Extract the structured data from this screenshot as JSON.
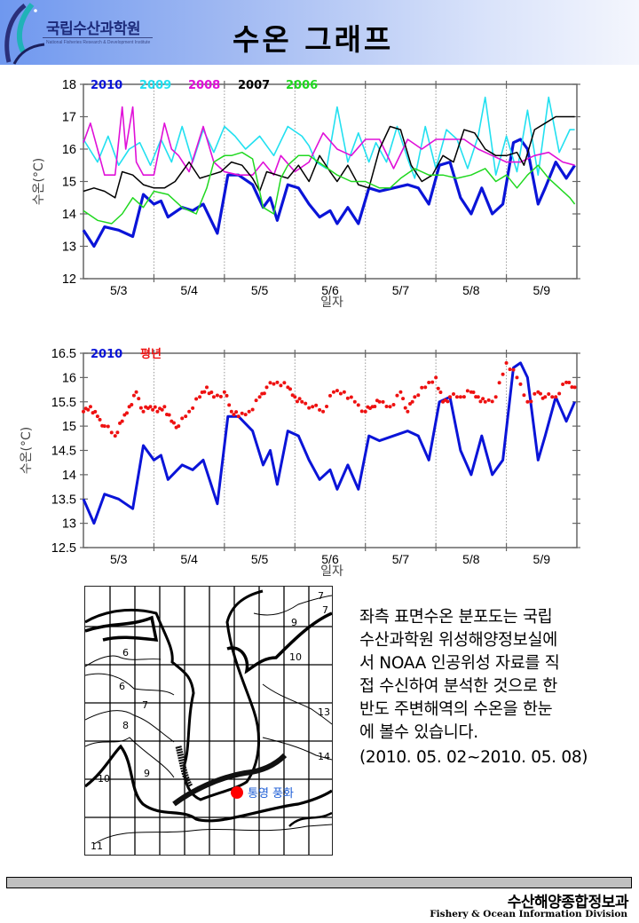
{
  "header": {
    "logo_kr": "국립수산과학원",
    "logo_en": "National Fisheries Research & Development Institute",
    "title": "수온 그래프"
  },
  "description": {
    "lines": [
      "좌측 표면수온 분포도는 국립",
      "수산과학원 위성해양정보실에",
      "서 NOAA 인공위성 자료를 직",
      "접 수신하여 분석한 것으로 한",
      "반도 주변해역의 수온을 한눈",
      "에 볼수 있습니다."
    ],
    "date_range": "(2010. 05. 02~2010. 05. 08)"
  },
  "map": {
    "location_label": "통영 풍화",
    "marker_color": "#ff0000",
    "label_color": "#1f5fd6",
    "contour_labels": [
      "6",
      "6",
      "7",
      "8",
      "9",
      "10",
      "11",
      "7",
      "7",
      "9",
      "10",
      "13",
      "14"
    ]
  },
  "footer": {
    "org_kr": "수산해양종합정보과",
    "org_en": "Fishery & Ocean Information Division"
  },
  "chart_data": [
    {
      "type": "line",
      "title": "",
      "xlabel": "일자",
      "ylabel": "수온(°C)",
      "ylim": [
        12,
        18
      ],
      "yticks": [
        "12",
        "13",
        "14",
        "15",
        "16",
        "17",
        "18"
      ],
      "x_categories": [
        "5/3",
        "5/4",
        "5/5",
        "5/6",
        "5/7",
        "5/8",
        "5/9"
      ],
      "xlim_days": [
        0,
        7
      ],
      "grid": "vertical dotted at day boundaries",
      "legend": "top-left, inline",
      "series": [
        {
          "name": "2010",
          "color": "#0a14d8",
          "width": 3.2,
          "x": [
            0,
            0.15,
            0.3,
            0.5,
            0.7,
            0.85,
            1.0,
            1.1,
            1.2,
            1.4,
            1.55,
            1.7,
            1.9,
            2.05,
            2.2,
            2.4,
            2.55,
            2.65,
            2.75,
            2.9,
            3.05,
            3.2,
            3.35,
            3.5,
            3.6,
            3.75,
            3.9,
            4.05,
            4.2,
            4.4,
            4.6,
            4.75,
            4.9,
            5.05,
            5.2,
            5.35,
            5.5,
            5.65,
            5.8,
            5.95,
            6.1,
            6.2,
            6.3,
            6.45,
            6.55,
            6.7,
            6.85,
            6.97
          ],
          "y": [
            13.5,
            13.0,
            13.6,
            13.5,
            13.3,
            14.6,
            14.3,
            14.4,
            13.9,
            14.2,
            14.1,
            14.3,
            13.4,
            15.2,
            15.2,
            14.9,
            14.2,
            14.5,
            13.8,
            14.9,
            14.8,
            14.3,
            13.9,
            14.1,
            13.7,
            14.2,
            13.7,
            14.8,
            14.7,
            14.8,
            14.9,
            14.8,
            14.3,
            15.5,
            15.6,
            14.5,
            14.0,
            14.8,
            14.0,
            14.3,
            16.2,
            16.3,
            16.0,
            14.3,
            14.8,
            15.6,
            15.1,
            15.5
          ]
        },
        {
          "name": "2009",
          "color": "#22e0f0",
          "width": 1.6,
          "x": [
            0,
            0.2,
            0.35,
            0.5,
            0.65,
            0.8,
            0.95,
            1.1,
            1.25,
            1.4,
            1.55,
            1.7,
            1.85,
            2.0,
            2.15,
            2.3,
            2.5,
            2.7,
            2.9,
            3.1,
            3.2,
            3.3,
            3.45,
            3.6,
            3.75,
            3.9,
            4.05,
            4.15,
            4.3,
            4.45,
            4.6,
            4.7,
            4.85,
            5.0,
            5.15,
            5.3,
            5.45,
            5.6,
            5.7,
            5.85,
            6.0,
            6.15,
            6.3,
            6.45,
            6.6,
            6.75,
            6.9,
            6.97
          ],
          "y": [
            16.3,
            15.6,
            16.4,
            15.5,
            16.0,
            16.2,
            15.5,
            16.3,
            15.6,
            16.7,
            15.6,
            16.6,
            15.9,
            16.7,
            16.4,
            16.0,
            16.4,
            15.8,
            16.7,
            16.4,
            16.1,
            15.6,
            15.4,
            17.3,
            15.6,
            16.5,
            15.6,
            16.2,
            15.6,
            16.7,
            15.7,
            15.1,
            16.7,
            15.4,
            16.6,
            16.3,
            15.4,
            16.4,
            17.6,
            15.2,
            16.4,
            15.3,
            17.2,
            15.2,
            17.6,
            15.9,
            16.6,
            16.6
          ]
        },
        {
          "name": "2008",
          "color": "#e010d8",
          "width": 1.6,
          "x": [
            0,
            0.1,
            0.2,
            0.3,
            0.45,
            0.55,
            0.6,
            0.7,
            0.75,
            0.85,
            1.0,
            1.15,
            1.25,
            1.35,
            1.5,
            1.7,
            1.85,
            2.0,
            2.2,
            2.4,
            2.55,
            2.7,
            2.8,
            3.0,
            3.2,
            3.4,
            3.6,
            3.8,
            4.0,
            4.2,
            4.4,
            4.6,
            4.8,
            5.0,
            5.2,
            5.4,
            5.6,
            5.8,
            6.0,
            6.2,
            6.4,
            6.6,
            6.8,
            6.97
          ],
          "y": [
            16.2,
            16.8,
            16.0,
            15.2,
            15.2,
            17.3,
            16.0,
            17.3,
            15.6,
            15.2,
            15.2,
            16.8,
            16.0,
            15.8,
            15.3,
            16.7,
            15.6,
            15.3,
            15.2,
            15.2,
            15.6,
            15.2,
            15.8,
            15.3,
            15.6,
            16.5,
            16.0,
            15.8,
            16.3,
            16.3,
            15.4,
            16.3,
            16.0,
            16.3,
            16.3,
            16.3,
            16.0,
            15.8,
            15.6,
            15.6,
            15.8,
            15.9,
            15.6,
            15.5
          ]
        },
        {
          "name": "2007",
          "color": "#000000",
          "width": 1.5,
          "x": [
            0,
            0.15,
            0.3,
            0.45,
            0.55,
            0.7,
            0.85,
            1.0,
            1.15,
            1.3,
            1.5,
            1.65,
            1.8,
            1.95,
            2.1,
            2.25,
            2.4,
            2.5,
            2.6,
            2.75,
            2.9,
            3.05,
            3.2,
            3.35,
            3.5,
            3.6,
            3.75,
            3.9,
            4.05,
            4.2,
            4.35,
            4.5,
            4.65,
            4.8,
            4.95,
            5.1,
            5.25,
            5.4,
            5.55,
            5.7,
            5.85,
            6.0,
            6.15,
            6.25,
            6.4,
            6.55,
            6.7,
            6.85,
            6.97
          ],
          "y": [
            14.7,
            14.8,
            14.7,
            14.5,
            15.3,
            15.2,
            14.9,
            14.8,
            14.8,
            15.0,
            15.6,
            15.1,
            15.2,
            15.3,
            15.6,
            15.5,
            15.1,
            14.7,
            15.3,
            15.2,
            15.1,
            15.5,
            15.0,
            15.8,
            15.3,
            15.0,
            15.5,
            14.9,
            14.8,
            16.0,
            16.7,
            16.6,
            15.5,
            15.0,
            15.2,
            15.8,
            15.6,
            16.6,
            16.5,
            16.0,
            15.8,
            15.8,
            15.9,
            15.5,
            16.6,
            16.8,
            17.0,
            17.0,
            17.0
          ]
        },
        {
          "name": "2006",
          "color": "#20d820",
          "width": 1.5,
          "x": [
            0,
            0.2,
            0.4,
            0.55,
            0.7,
            0.85,
            1.0,
            1.2,
            1.4,
            1.6,
            1.75,
            1.85,
            2.0,
            2.1,
            2.25,
            2.4,
            2.55,
            2.7,
            2.8,
            2.9,
            3.05,
            3.2,
            3.4,
            3.6,
            3.8,
            4.0,
            4.2,
            4.35,
            4.5,
            4.7,
            4.9,
            5.1,
            5.3,
            5.5,
            5.7,
            5.85,
            6.0,
            6.15,
            6.3,
            6.45,
            6.6,
            6.75,
            6.9,
            6.97
          ],
          "y": [
            14.1,
            13.8,
            13.7,
            14.0,
            14.5,
            14.2,
            14.7,
            14.6,
            14.2,
            14.0,
            14.8,
            15.6,
            15.8,
            15.8,
            15.9,
            15.7,
            14.2,
            14.0,
            15.1,
            15.5,
            15.8,
            15.8,
            15.5,
            15.2,
            15.0,
            15.0,
            14.8,
            14.8,
            15.1,
            15.4,
            15.2,
            15.2,
            15.1,
            15.2,
            15.4,
            15.0,
            15.2,
            14.8,
            15.2,
            15.5,
            15.1,
            14.8,
            14.5,
            14.3
          ]
        }
      ]
    },
    {
      "type": "scatter+line",
      "title": "",
      "xlabel": "일자",
      "ylabel": "수온(°C)",
      "ylim": [
        12.5,
        16.5
      ],
      "yticks": [
        "12.5",
        "13",
        "13.5",
        "14",
        "14.5",
        "15",
        "15.5",
        "16",
        "16.5"
      ],
      "x_categories": [
        "5/3",
        "5/4",
        "5/5",
        "5/6",
        "5/7",
        "5/8",
        "5/9"
      ],
      "xlim_days": [
        0,
        7
      ],
      "grid": "vertical dotted at day boundaries",
      "legend": "top-left, inline",
      "series": [
        {
          "name": "2010",
          "type": "line",
          "color": "#0a14d8",
          "x": [
            0,
            0.15,
            0.3,
            0.5,
            0.7,
            0.85,
            1.0,
            1.1,
            1.2,
            1.4,
            1.55,
            1.7,
            1.9,
            2.05,
            2.2,
            2.4,
            2.55,
            2.65,
            2.75,
            2.9,
            3.05,
            3.2,
            3.35,
            3.5,
            3.6,
            3.75,
            3.9,
            4.05,
            4.2,
            4.4,
            4.6,
            4.75,
            4.9,
            5.05,
            5.2,
            5.35,
            5.5,
            5.65,
            5.8,
            5.95,
            6.1,
            6.2,
            6.3,
            6.45,
            6.55,
            6.7,
            6.85,
            6.97
          ],
          "y": [
            13.5,
            13.0,
            13.6,
            13.5,
            13.3,
            14.6,
            14.3,
            14.4,
            13.9,
            14.2,
            14.1,
            14.3,
            13.4,
            15.2,
            15.2,
            14.9,
            14.2,
            14.5,
            13.8,
            14.9,
            14.8,
            14.3,
            13.9,
            14.1,
            13.7,
            14.2,
            13.7,
            14.8,
            14.7,
            14.8,
            14.9,
            14.8,
            14.3,
            15.5,
            15.6,
            14.5,
            14.0,
            14.8,
            14.0,
            14.3,
            16.2,
            16.3,
            16.0,
            14.3,
            14.8,
            15.6,
            15.1,
            15.5
          ]
        },
        {
          "name": "평년",
          "type": "scatter",
          "color": "#ee1111",
          "x": [
            0,
            0.1,
            0.2,
            0.3,
            0.45,
            0.55,
            0.65,
            0.75,
            0.85,
            0.95,
            1.05,
            1.15,
            1.25,
            1.35,
            1.5,
            1.65,
            1.75,
            1.85,
            2.0,
            2.1,
            2.2,
            2.35,
            2.5,
            2.6,
            2.75,
            2.9,
            3.0,
            3.1,
            3.25,
            3.4,
            3.55,
            3.7,
            3.85,
            4.0,
            4.1,
            4.2,
            4.35,
            4.5,
            4.6,
            4.7,
            4.85,
            5.0,
            5.1,
            5.2,
            5.35,
            5.5,
            5.6,
            5.7,
            5.85,
            6.0,
            6.15,
            6.3,
            6.45,
            6.55,
            6.7,
            6.85,
            6.97
          ],
          "y": [
            15.3,
            15.4,
            15.2,
            15.0,
            14.8,
            15.1,
            15.4,
            15.7,
            15.3,
            15.4,
            15.3,
            15.4,
            15.1,
            15.0,
            15.3,
            15.6,
            15.8,
            15.6,
            15.7,
            15.3,
            15.2,
            15.3,
            15.6,
            15.8,
            15.9,
            15.8,
            15.6,
            15.5,
            15.4,
            15.3,
            15.7,
            15.7,
            15.5,
            15.3,
            15.4,
            15.5,
            15.4,
            15.7,
            15.3,
            15.6,
            15.8,
            16.0,
            15.5,
            15.6,
            15.6,
            15.7,
            15.6,
            15.5,
            15.6,
            16.3,
            16.0,
            15.5,
            15.7,
            15.6,
            15.6,
            15.9,
            15.8
          ]
        }
      ]
    }
  ]
}
